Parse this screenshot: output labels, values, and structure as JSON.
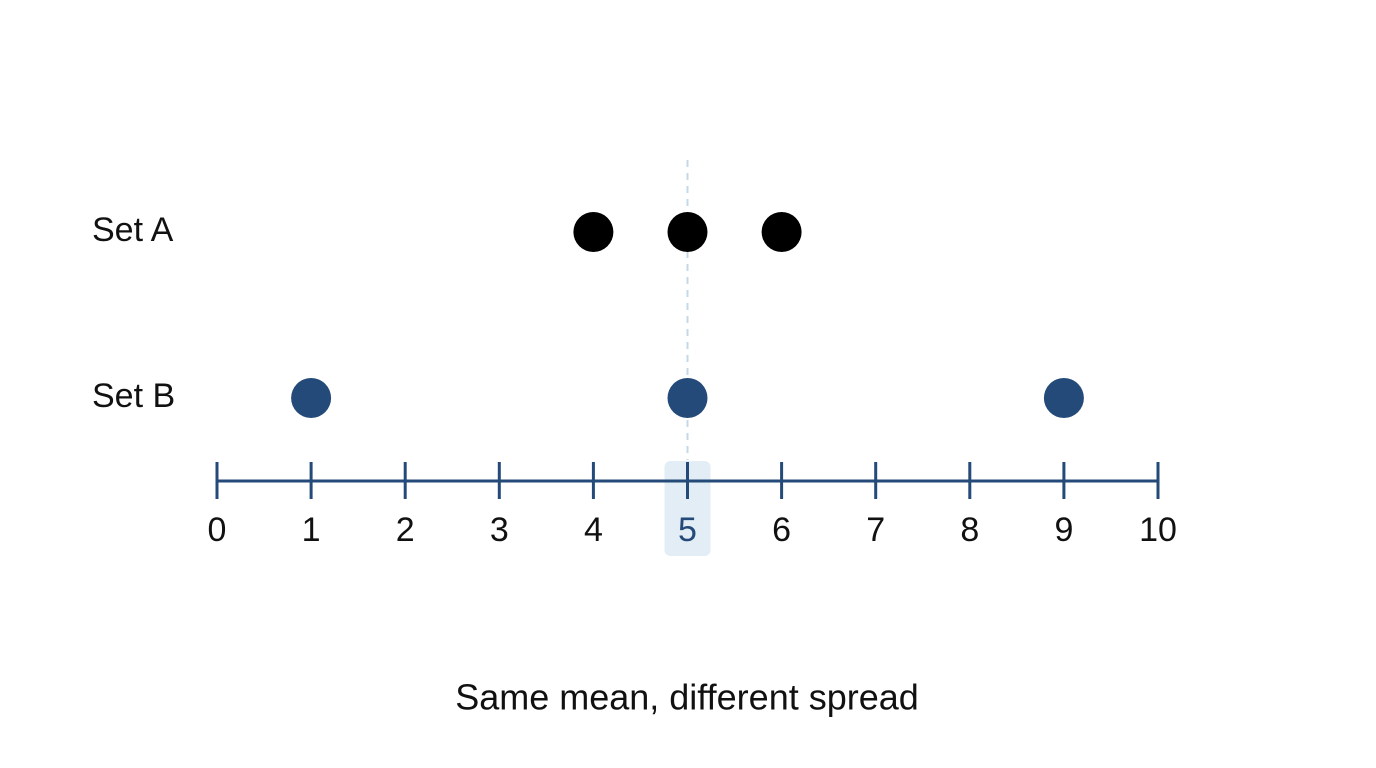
{
  "chart_data": {
    "type": "dot",
    "caption": "Same mean, different spread",
    "series": [
      {
        "name": "Set A",
        "color": "#000000",
        "values": [
          4,
          5,
          6
        ]
      },
      {
        "name": "Set B",
        "color": "#234a78",
        "values": [
          1,
          5,
          9
        ]
      }
    ],
    "xlim": [
      0,
      10
    ],
    "xticks": [
      0,
      1,
      2,
      3,
      4,
      5,
      6,
      7,
      8,
      9,
      10
    ],
    "axis_color": "#234a78",
    "reference_line": 5,
    "reference_color": "#c5d8e6",
    "highlight_color": "#e3edf5"
  }
}
